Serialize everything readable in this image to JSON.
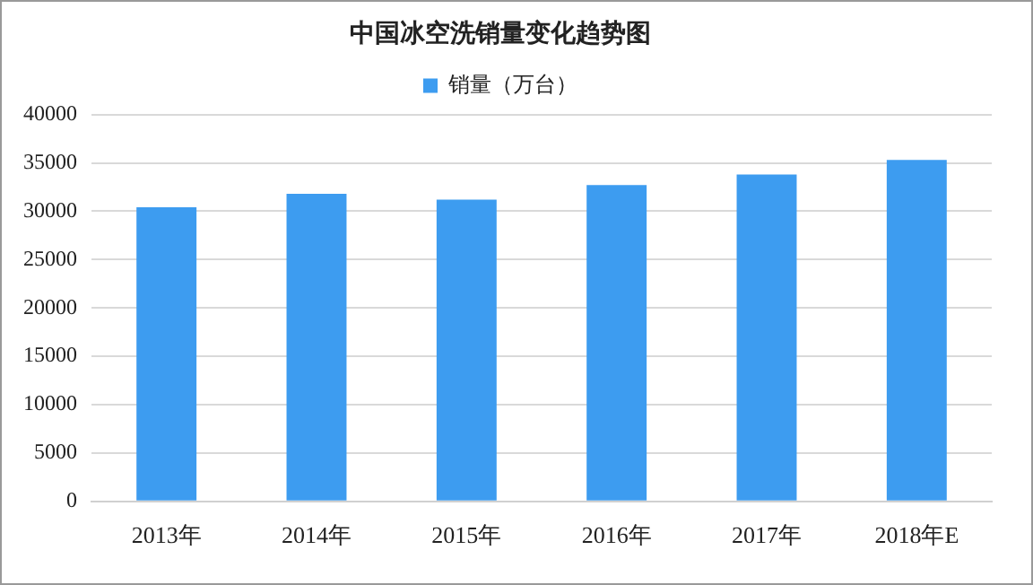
{
  "chart_data": {
    "type": "bar",
    "title": "中国冰空洗销量变化趋势图",
    "categories": [
      "2013年",
      "2014年",
      "2015年",
      "2016年",
      "2017年",
      "2018年E"
    ],
    "series": [
      {
        "name": "销量（万台）",
        "color": "#3d9cf0",
        "values": [
          30400,
          31800,
          31200,
          32700,
          33800,
          35300
        ]
      }
    ],
    "ylim": [
      0,
      40000
    ],
    "yticks": [
      0,
      5000,
      10000,
      15000,
      20000,
      25000,
      30000,
      35000,
      40000
    ],
    "grid": "y",
    "legend": "top"
  }
}
